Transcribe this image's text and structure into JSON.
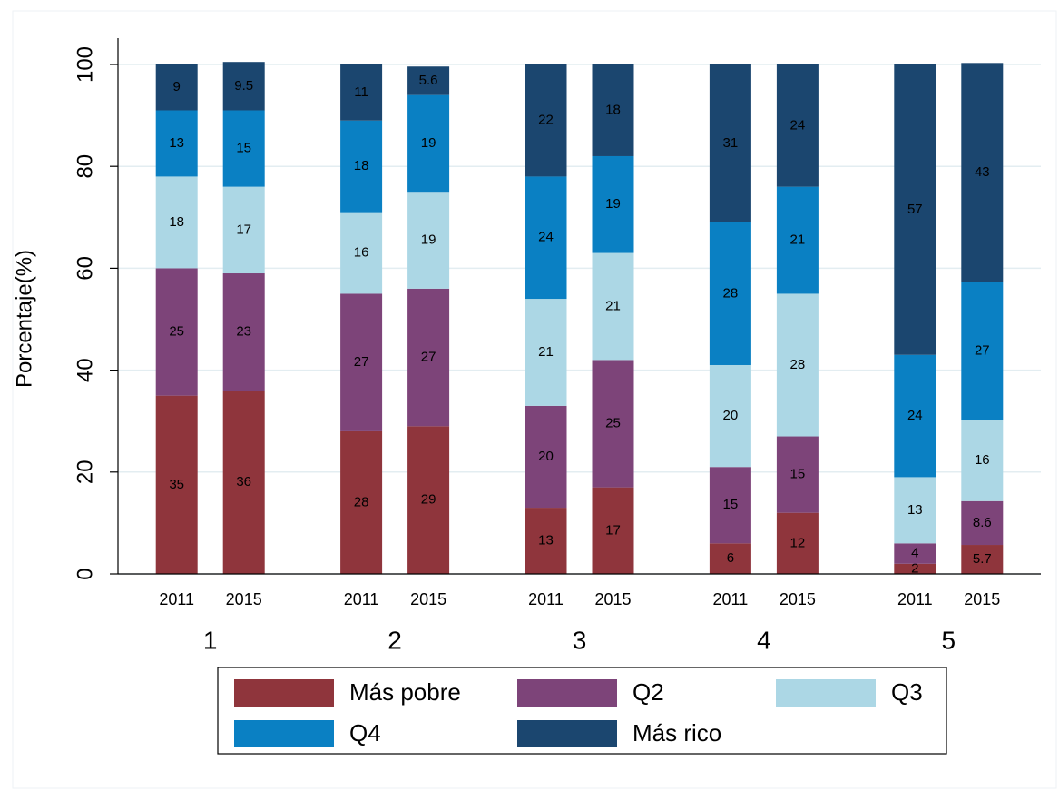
{
  "chart_data": {
    "type": "stacked_bar",
    "y_label": "Porcentaje(%)",
    "groups": [
      "1",
      "2",
      "3",
      "4",
      "5"
    ],
    "categories": [
      "2011",
      "2015",
      "2011",
      "2015",
      "2011",
      "2015",
      "2011",
      "2015",
      "2011",
      "2015"
    ],
    "series": [
      {
        "name": "Más pobre",
        "color": "#8f353c",
        "values": [
          35,
          36,
          28,
          29,
          13,
          17,
          6,
          12,
          2,
          5.7
        ]
      },
      {
        "name": "Q2",
        "color": "#7d4479",
        "values": [
          25,
          23,
          27,
          27,
          20,
          25,
          15,
          15,
          4,
          8.6
        ]
      },
      {
        "name": "Q3",
        "color": "#acd7e5",
        "values": [
          18,
          17,
          16,
          19,
          21,
          21,
          20,
          28,
          13,
          16
        ]
      },
      {
        "name": "Q4",
        "color": "#0a80c3",
        "values": [
          13,
          15,
          18,
          19,
          24,
          19,
          28,
          21,
          24,
          27
        ]
      },
      {
        "name": "Más rico",
        "color": "#1b466f",
        "values": [
          9,
          9.5,
          11,
          5.6,
          22,
          18,
          31,
          24,
          57,
          43
        ]
      }
    ],
    "ylim": [
      0,
      100
    ],
    "yticks": [
      0,
      20,
      40,
      60,
      80,
      100
    ],
    "grid": true
  }
}
